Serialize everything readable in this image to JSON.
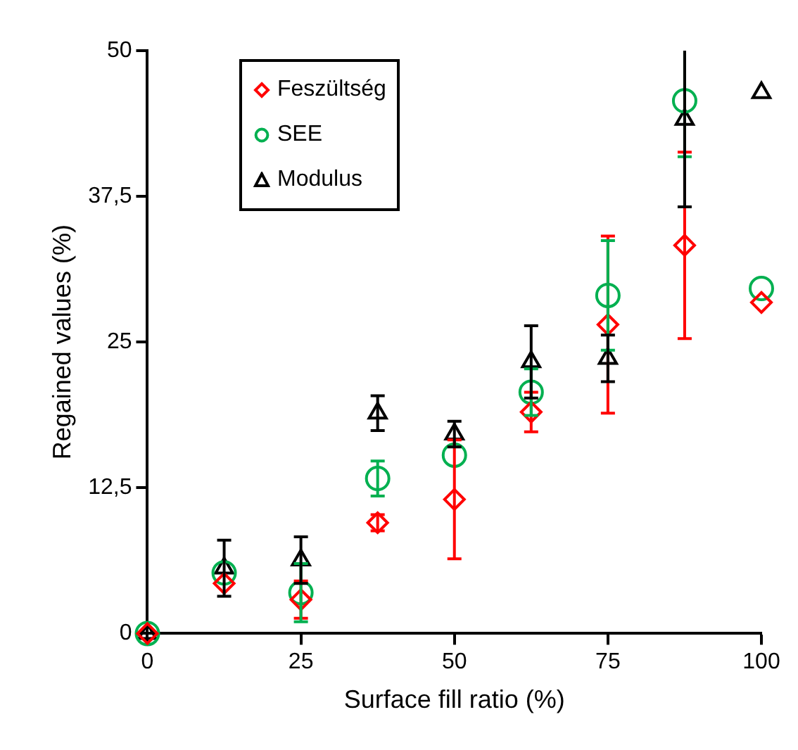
{
  "chart_data": {
    "type": "scatter",
    "xlabel": "Surface fill ratio (%)",
    "ylabel": "Regained values (%)",
    "x": [
      0,
      12.5,
      25,
      37.5,
      50,
      62.5,
      75,
      87.5,
      100
    ],
    "series": [
      {
        "name": "Feszültség",
        "color": "#ff0000",
        "marker": "diamond",
        "values": [
          0,
          4.3,
          2.9,
          9.5,
          11.5,
          19,
          26.5,
          33.3,
          28.4
        ],
        "errors": [
          null,
          null,
          1.6,
          0.7,
          5.1,
          1.7,
          7.6,
          8,
          null
        ]
      },
      {
        "name": "SEE",
        "color": "#00b050",
        "marker": "circle",
        "values": [
          0,
          5.2,
          3.5,
          13.3,
          15.3,
          20.7,
          29,
          45.7,
          29.6
        ],
        "errors": [
          null,
          null,
          2.5,
          1.5,
          null,
          2,
          4.7,
          [
            40.9,
            50
          ],
          null
        ]
      },
      {
        "name": "Modulus",
        "color": "#000000",
        "marker": "triangle",
        "values": [
          0,
          5.6,
          6.3,
          18.9,
          17.1,
          23.3,
          23.6,
          44.1,
          46.4
        ],
        "errors": [
          null,
          2.4,
          2,
          1.5,
          1.1,
          3.1,
          2,
          [
            36.6,
            50
          ],
          null
        ]
      }
    ],
    "xlim": [
      0,
      100
    ],
    "xticks": [
      0,
      25,
      50,
      75,
      100
    ],
    "ylim": [
      0,
      50
    ],
    "yticks": [
      0,
      {
        "value": 12.5,
        "label": "12,5"
      },
      25,
      {
        "value": 37.5,
        "label": "37,5"
      },
      50
    ],
    "grid": false,
    "legend": "top left"
  }
}
